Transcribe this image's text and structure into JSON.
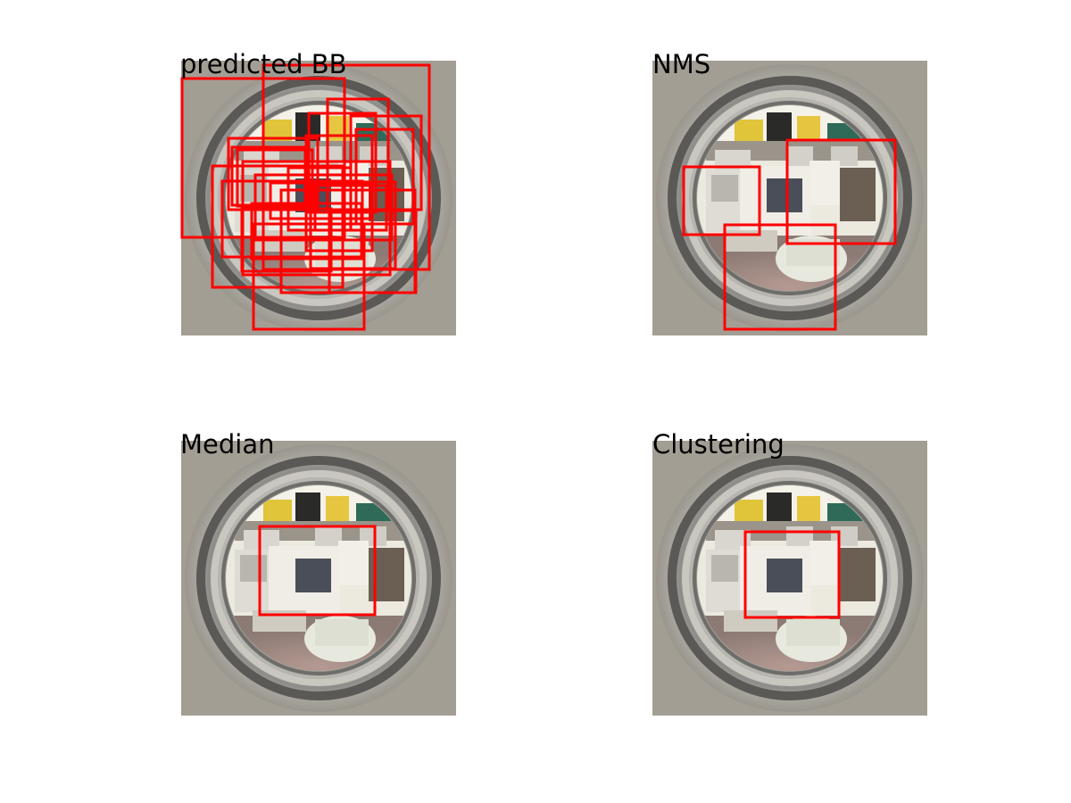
{
  "figure": {
    "panels": [
      {
        "title": "predicted BB"
      },
      {
        "title": "NMS"
      },
      {
        "title": "Median"
      },
      {
        "title": "Clustering"
      }
    ]
  },
  "colors": {
    "box": "#ff0000",
    "background": "#ffffff",
    "lens_ring": "#8a8a88"
  }
}
